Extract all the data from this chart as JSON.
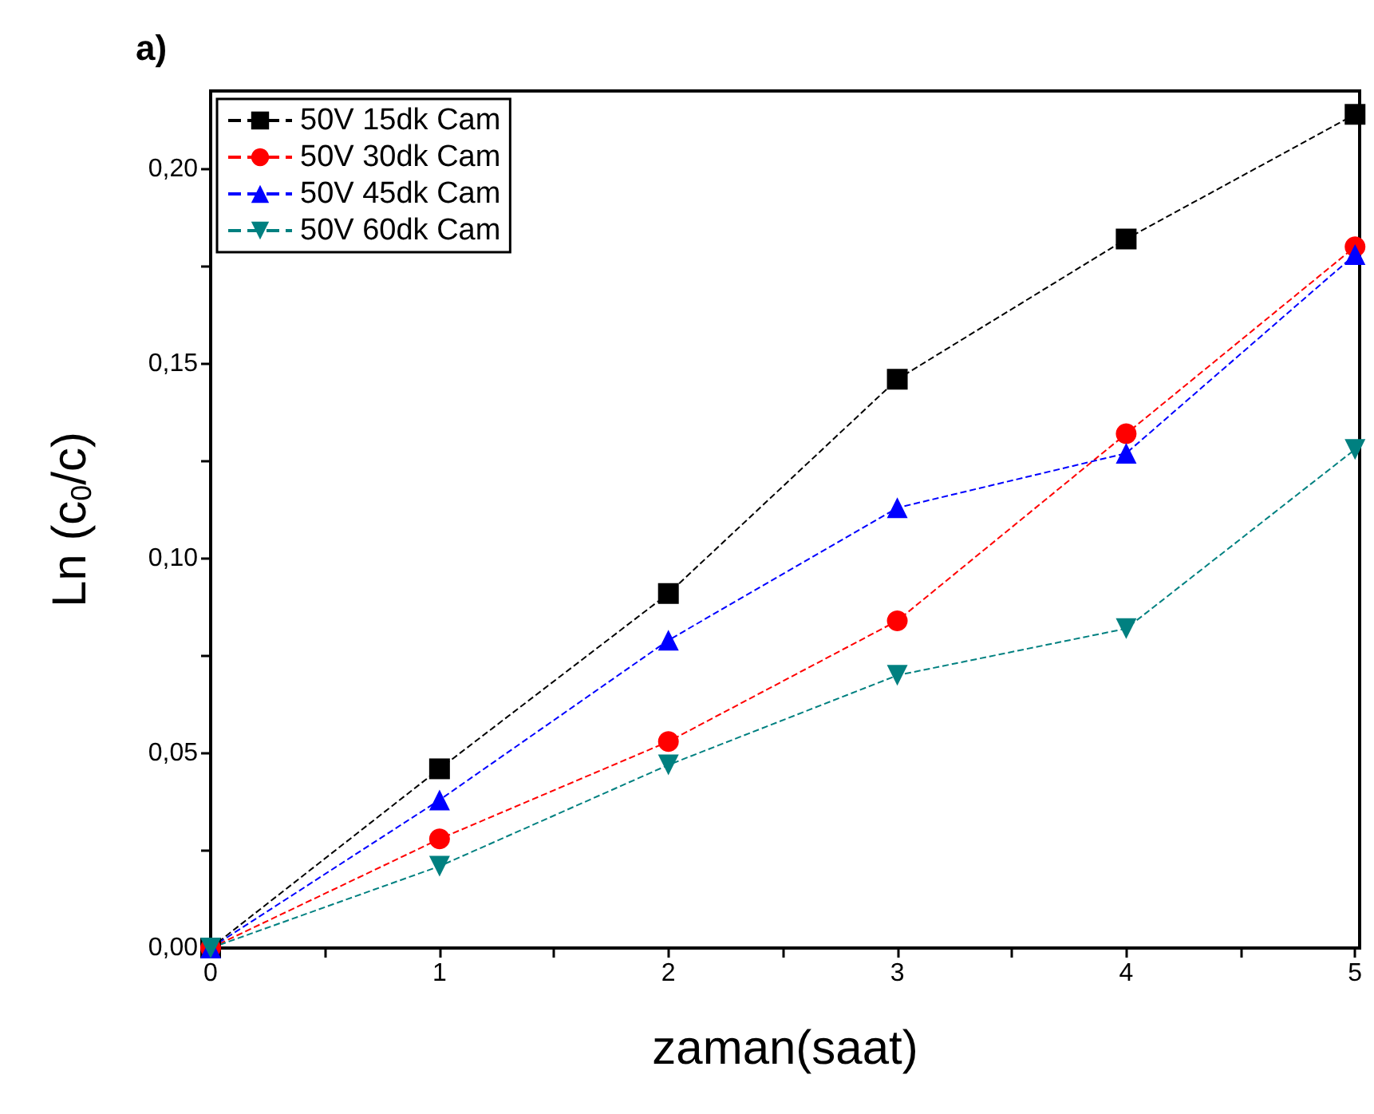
{
  "chart_data": {
    "type": "line",
    "title": "a)",
    "xlabel": "zaman(saat)",
    "ylabel": "Ln (c$_{0}$/c)",
    "x": [
      0,
      1,
      2,
      3,
      4,
      5
    ],
    "series": [
      {
        "name": "50V 15dk Cam",
        "color": "#000000",
        "marker": "square",
        "values": [
          0,
          0.046,
          0.091,
          0.146,
          0.182,
          0.214
        ]
      },
      {
        "name": "50V 30dk Cam",
        "color": "#ff0000",
        "marker": "circle",
        "values": [
          0,
          0.028,
          0.053,
          0.084,
          0.132,
          0.18
        ]
      },
      {
        "name": "50V 45dk Cam",
        "color": "#0000ff",
        "marker": "triangle",
        "values": [
          0,
          0.038,
          0.079,
          0.113,
          0.127,
          0.178
        ]
      },
      {
        "name": "50V 60dk Cam",
        "color": "#008080",
        "marker": "triangle-down",
        "values": [
          0,
          0.021,
          0.047,
          0.07,
          0.082,
          0.128
        ]
      }
    ],
    "line_style": "dashed",
    "xlim": [
      0,
      5.02
    ],
    "ylim": [
      0,
      0.22
    ],
    "xticks": [
      0,
      {
        "value": 0.5,
        "label": null
      },
      1,
      {
        "value": 1.5,
        "label": null
      },
      2,
      {
        "value": 2.5,
        "label": null
      },
      3,
      {
        "value": 3.5,
        "label": null
      },
      4,
      {
        "value": 4.5,
        "label": null
      },
      5
    ],
    "yticks": [
      {
        "value": 0,
        "label": "0,00"
      },
      {
        "value": 0.025,
        "label": null
      },
      {
        "value": 0.05,
        "label": "0,05"
      },
      {
        "value": 0.075,
        "label": null
      },
      {
        "value": 0.1,
        "label": "0,10"
      },
      {
        "value": 0.125,
        "label": null
      },
      {
        "value": 0.15,
        "label": "0,15"
      },
      {
        "value": 0.175,
        "label": null
      },
      {
        "value": 0.2,
        "label": "0,20"
      }
    ],
    "grid": false,
    "legend": "top left"
  }
}
